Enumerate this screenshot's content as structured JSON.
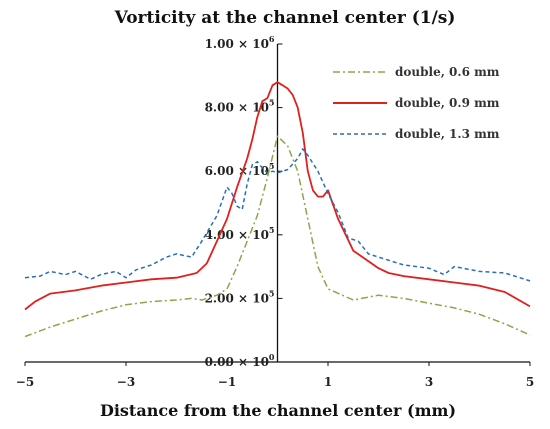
{
  "chart_data": {
    "type": "line",
    "title": "Vorticity at the channel center (1/s)",
    "xlabel": "Distance from the channel center (mm)",
    "ylabel": "",
    "xlim": [
      -5,
      5
    ],
    "ylim": [
      0,
      1000000
    ],
    "x_ticks": [
      -5,
      -3,
      -1,
      1,
      3,
      5
    ],
    "x_tick_labels": [
      "−5",
      "−3",
      "−1",
      "1",
      "3",
      "5"
    ],
    "y_ticks": [
      {
        "value": 0,
        "mantissa": "0.00",
        "exp": "0"
      },
      {
        "value": 200000,
        "mantissa": "2.00",
        "exp": "5"
      },
      {
        "value": 400000,
        "mantissa": "4.00",
        "exp": "5"
      },
      {
        "value": 600000,
        "mantissa": "6.00",
        "exp": "5"
      },
      {
        "value": 800000,
        "mantissa": "8.00",
        "exp": "5"
      },
      {
        "value": 1000000,
        "mantissa": "1.00",
        "exp": "6"
      }
    ],
    "y_tick_mult": "× 10",
    "grid": false,
    "legend_position": "top-right",
    "series": [
      {
        "name": "double, 0.6 mm",
        "color": "#8aa84a",
        "dash": "dashdot",
        "x": [
          -5,
          -4.5,
          -4,
          -3.5,
          -3,
          -2.5,
          -2,
          -1.7,
          -1.5,
          -1.2,
          -1.0,
          -0.8,
          -0.6,
          -0.4,
          -0.2,
          0,
          0.2,
          0.4,
          0.6,
          0.8,
          1.0,
          1.5,
          2.0,
          2.5,
          3.0,
          3.5,
          4.0,
          4.5,
          5
        ],
        "y": [
          80000,
          110000,
          135000,
          160000,
          180000,
          190000,
          195000,
          200000,
          195000,
          210000,
          230000,
          300000,
          380000,
          460000,
          580000,
          710000,
          680000,
          600000,
          450000,
          300000,
          230000,
          195000,
          210000,
          200000,
          185000,
          170000,
          150000,
          120000,
          85000
        ]
      },
      {
        "name": "double, 0.9 mm",
        "color": "#e0201c",
        "dash": "solid",
        "x": [
          -5,
          -4.8,
          -4.5,
          -4,
          -3.5,
          -3,
          -2.5,
          -2,
          -1.6,
          -1.4,
          -1.2,
          -1.0,
          -0.8,
          -0.6,
          -0.5,
          -0.4,
          -0.3,
          -0.2,
          -0.1,
          0,
          0.1,
          0.2,
          0.3,
          0.4,
          0.5,
          0.6,
          0.7,
          0.8,
          0.9,
          1.0,
          1.2,
          1.5,
          2.0,
          2.2,
          2.5,
          3.0,
          3.5,
          4.0,
          4.5,
          5
        ],
        "y": [
          165000,
          190000,
          215000,
          225000,
          240000,
          250000,
          260000,
          265000,
          280000,
          310000,
          380000,
          450000,
          550000,
          640000,
          700000,
          770000,
          820000,
          830000,
          870000,
          880000,
          870000,
          860000,
          840000,
          800000,
          720000,
          600000,
          540000,
          520000,
          520000,
          540000,
          450000,
          350000,
          295000,
          280000,
          270000,
          260000,
          250000,
          240000,
          220000,
          175000
        ]
      },
      {
        "name": "double, 1.3 mm",
        "color": "#2a6eb8",
        "dash": "dashed",
        "x": [
          -5,
          -4.7,
          -4.5,
          -4.2,
          -4,
          -3.7,
          -3.5,
          -3.2,
          -3,
          -2.8,
          -2.5,
          -2.2,
          -2,
          -1.7,
          -1.5,
          -1.2,
          -1.0,
          -0.9,
          -0.8,
          -0.7,
          -0.6,
          -0.5,
          -0.4,
          -0.3,
          -0.2,
          -0.1,
          0,
          0.2,
          0.4,
          0.5,
          0.6,
          0.8,
          1.0,
          1.2,
          1.4,
          1.6,
          1.8,
          2.0,
          2.5,
          3.0,
          3.3,
          3.5,
          4.0,
          4.5,
          5
        ],
        "y": [
          265000,
          270000,
          285000,
          275000,
          285000,
          260000,
          275000,
          285000,
          265000,
          290000,
          305000,
          330000,
          340000,
          330000,
          380000,
          460000,
          550000,
          530000,
          490000,
          480000,
          560000,
          620000,
          630000,
          610000,
          595000,
          600000,
          595000,
          605000,
          640000,
          670000,
          650000,
          600000,
          530000,
          470000,
          390000,
          380000,
          340000,
          330000,
          305000,
          295000,
          275000,
          300000,
          285000,
          280000,
          255000
        ]
      }
    ]
  }
}
